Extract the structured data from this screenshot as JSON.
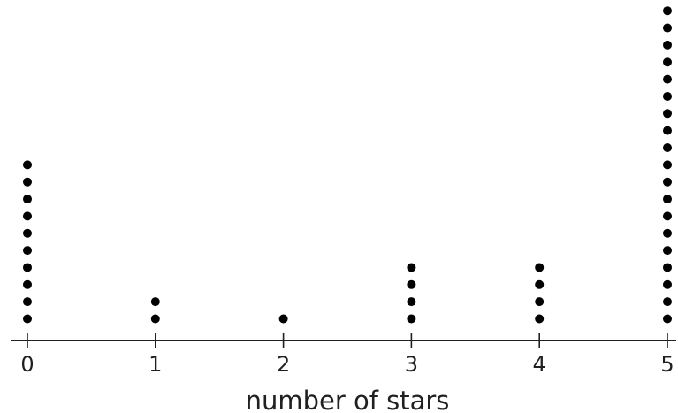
{
  "chart_data": {
    "type": "dot_plot",
    "xlabel": "number of stars",
    "ylabel": "",
    "title": "",
    "xlim": [
      0,
      5
    ],
    "ticks": [
      "0",
      "1",
      "2",
      "3",
      "4",
      "5"
    ],
    "x": [
      0,
      1,
      2,
      3,
      4,
      5
    ],
    "counts": [
      10,
      2,
      1,
      4,
      4,
      20
    ],
    "colors": {
      "dot": "#000000",
      "axis": "#231f20",
      "text": "#231f20"
    }
  }
}
